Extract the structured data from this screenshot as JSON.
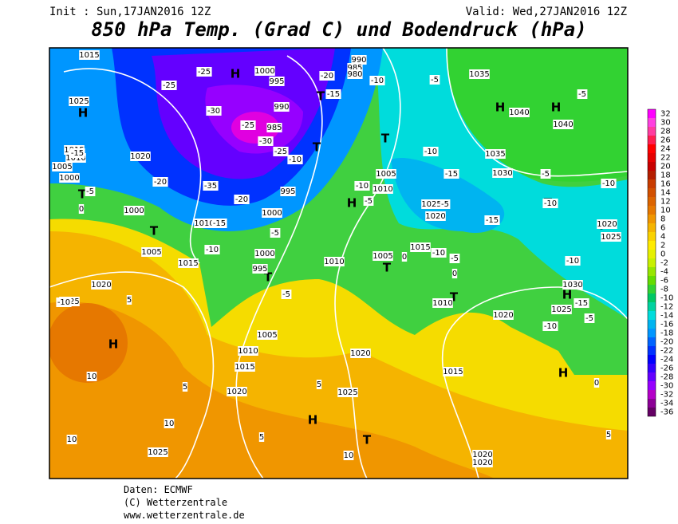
{
  "header": {
    "init": "Init : Sun,17JAN2016 12Z",
    "valid": "Valid: Wed,27JAN2016 12Z",
    "title": "850 hPa Temp. (Grad C) und Bodendruck (hPa)"
  },
  "legend": {
    "values": [
      32,
      30,
      28,
      26,
      24,
      22,
      20,
      18,
      16,
      14,
      12,
      10,
      8,
      6,
      4,
      2,
      0,
      -2,
      -4,
      -6,
      -8,
      -10,
      -12,
      -14,
      -16,
      -18,
      -20,
      -22,
      -24,
      -26,
      -28,
      -30,
      -32,
      -34,
      -36
    ],
    "colors": [
      "#ff00ff",
      "#ff40e0",
      "#ff3ca0",
      "#ff1e50",
      "#ff0000",
      "#e60000",
      "#c80000",
      "#b41e00",
      "#c83c00",
      "#d25000",
      "#dc6400",
      "#e67800",
      "#f09600",
      "#f5b400",
      "#fad200",
      "#ffeb00",
      "#e6f000",
      "#c8f000",
      "#96e600",
      "#64dc00",
      "#32d232",
      "#00c864",
      "#00d2a0",
      "#00dcdc",
      "#00b4f0",
      "#0096ff",
      "#0064ff",
      "#0032ff",
      "#0000ff",
      "#3200ff",
      "#6400ff",
      "#9600ff",
      "#b400c8",
      "#8c0096",
      "#640064"
    ]
  },
  "map_labels": [
    "H",
    "H",
    "H",
    "H",
    "H",
    "H",
    "H",
    "H",
    "H",
    "T",
    "T",
    "T",
    "T",
    "T",
    "T",
    "T",
    "T",
    "T",
    "T",
    "T",
    "1015",
    "1025",
    "1015",
    "1010",
    "1005",
    "1000",
    "1020",
    "1000",
    "1005",
    "1015",
    "1010",
    "1000",
    "995",
    "1000",
    "995",
    "1020",
    "1025",
    "1005",
    "1010",
    "1015",
    "1020",
    "1025",
    "1020",
    "1025",
    "1015",
    "1010",
    "1015",
    "1005",
    "1010",
    "1005",
    "1010",
    "1025",
    "1020",
    "1035",
    "1040",
    "1040",
    "1035",
    "1030",
    "1020",
    "1025",
    "1030",
    "1025",
    "1020",
    "1020",
    "1020",
    "990",
    "985",
    "980",
    "990",
    "995",
    "985",
    "1000",
    "-25",
    "-25",
    "-30",
    "-25",
    "-30",
    "-25",
    "-35",
    "-20",
    "-20",
    "-15",
    "-10",
    "-5",
    "-5",
    "5",
    "-10",
    "-5",
    "-10",
    "-15",
    "-5",
    "-15",
    "-10",
    "-5",
    "-10",
    "-10",
    "-10",
    "-5",
    "-5",
    "-5",
    "-10",
    "-20",
    "-15",
    "-10",
    "-15",
    "-5",
    "0",
    "0",
    "0",
    "-5",
    "-10",
    "-15",
    "5",
    "5",
    "5",
    "10",
    "10",
    "10",
    "10",
    "0",
    "5",
    "-10"
  ],
  "footer": {
    "source": "Daten: ECMWF",
    "copyright": "(C) Wetterzentrale",
    "url": "www.wetterzentrale.de"
  }
}
